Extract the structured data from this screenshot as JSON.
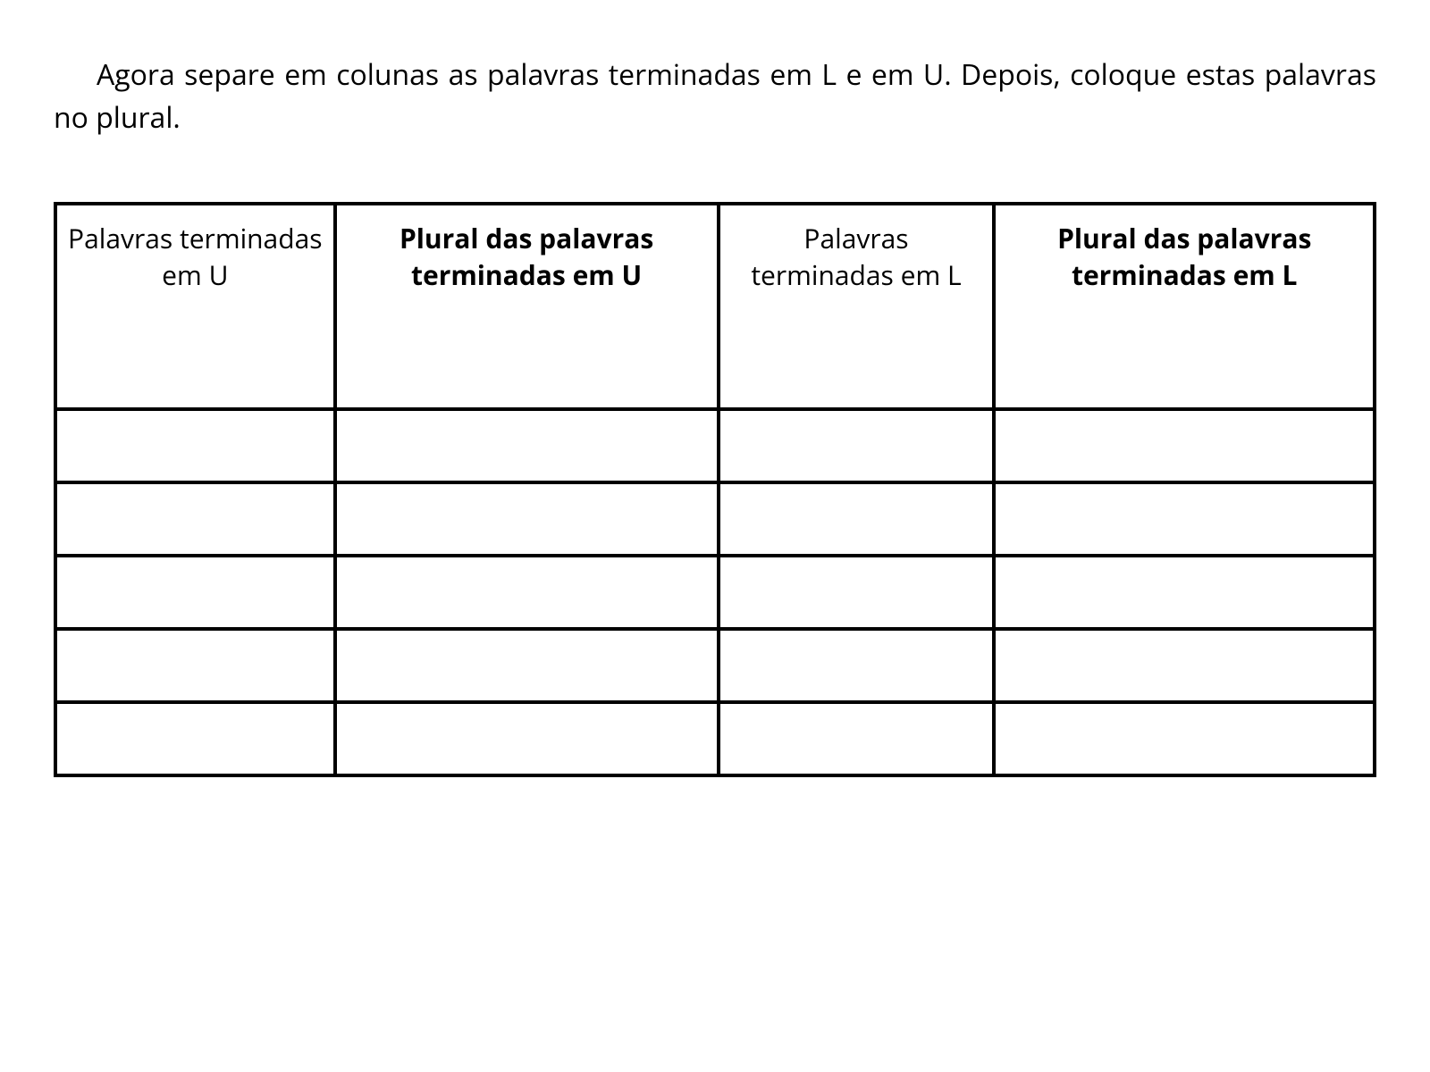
{
  "instruction": "Agora separe em colunas as palavras terminadas em L e em U. Depois, coloque estas palavras no plural.",
  "table": {
    "columns": [
      {
        "label": "Palavras terminadas em U",
        "bold": false
      },
      {
        "label": "Plural das palavras terminadas em U",
        "bold": true
      },
      {
        "label": "Palavras terminadas em L",
        "bold": false
      },
      {
        "label": "Plural das palavras terminadas em L",
        "bold": true
      }
    ],
    "row_count": 5,
    "border_color": "#000000",
    "border_width": 4,
    "header_fontsize": 30,
    "background_color": "#ffffff"
  }
}
